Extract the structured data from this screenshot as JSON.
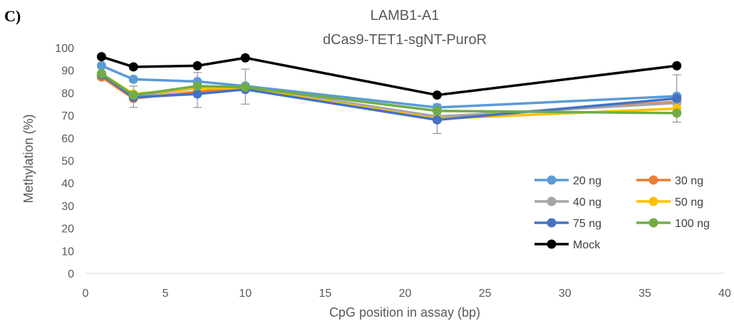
{
  "panel_label": "C)",
  "chart_data": {
    "type": "line",
    "title": "LAMB1-A1",
    "subtitle": "dCas9-TET1-sgNT-PuroR",
    "xlabel": "CpG position in assay (bp)",
    "ylabel": "Methylation (%)",
    "xlim": [
      0,
      40
    ],
    "ylim": [
      0,
      100
    ],
    "xticks": [
      0,
      5,
      10,
      15,
      20,
      25,
      30,
      35,
      40
    ],
    "yticks": [
      0,
      10,
      20,
      30,
      40,
      50,
      60,
      70,
      80,
      90,
      100
    ],
    "grid": false,
    "legend_position": "right",
    "x": [
      1,
      3,
      7,
      10,
      22,
      37
    ],
    "series": [
      {
        "name": "20 ng",
        "color": "#5B9BD5",
        "values": [
          92,
          86,
          85,
          83,
          73.5,
          78.5
        ]
      },
      {
        "name": "30 ng",
        "color": "#ED7D31",
        "values": [
          87,
          77.5,
          80.5,
          82.5,
          69,
          76
        ]
      },
      {
        "name": "40 ng",
        "color": "#A5A5A5",
        "values": [
          88,
          78.5,
          82,
          82.5,
          69.5,
          75.5
        ]
      },
      {
        "name": "50 ng",
        "color": "#FFC000",
        "values": [
          88.5,
          79.5,
          82,
          82,
          68.5,
          73
        ]
      },
      {
        "name": "75 ng",
        "color": "#4472C4",
        "values": [
          88,
          78,
          79.5,
          81.5,
          68,
          77.5
        ]
      },
      {
        "name": "100 ng",
        "color": "#70AD47",
        "values": [
          88.5,
          79,
          83,
          82.5,
          72,
          71
        ]
      },
      {
        "name": "Mock",
        "color": "#000000",
        "values": [
          96,
          91.5,
          92,
          95.5,
          79,
          92
        ]
      }
    ],
    "error_bars": {
      "x": [
        3,
        7,
        10,
        22,
        37
      ],
      "low": [
        73.5,
        73.5,
        75,
        62,
        67
      ],
      "high": [
        83,
        89,
        90.5,
        75,
        88
      ]
    }
  }
}
